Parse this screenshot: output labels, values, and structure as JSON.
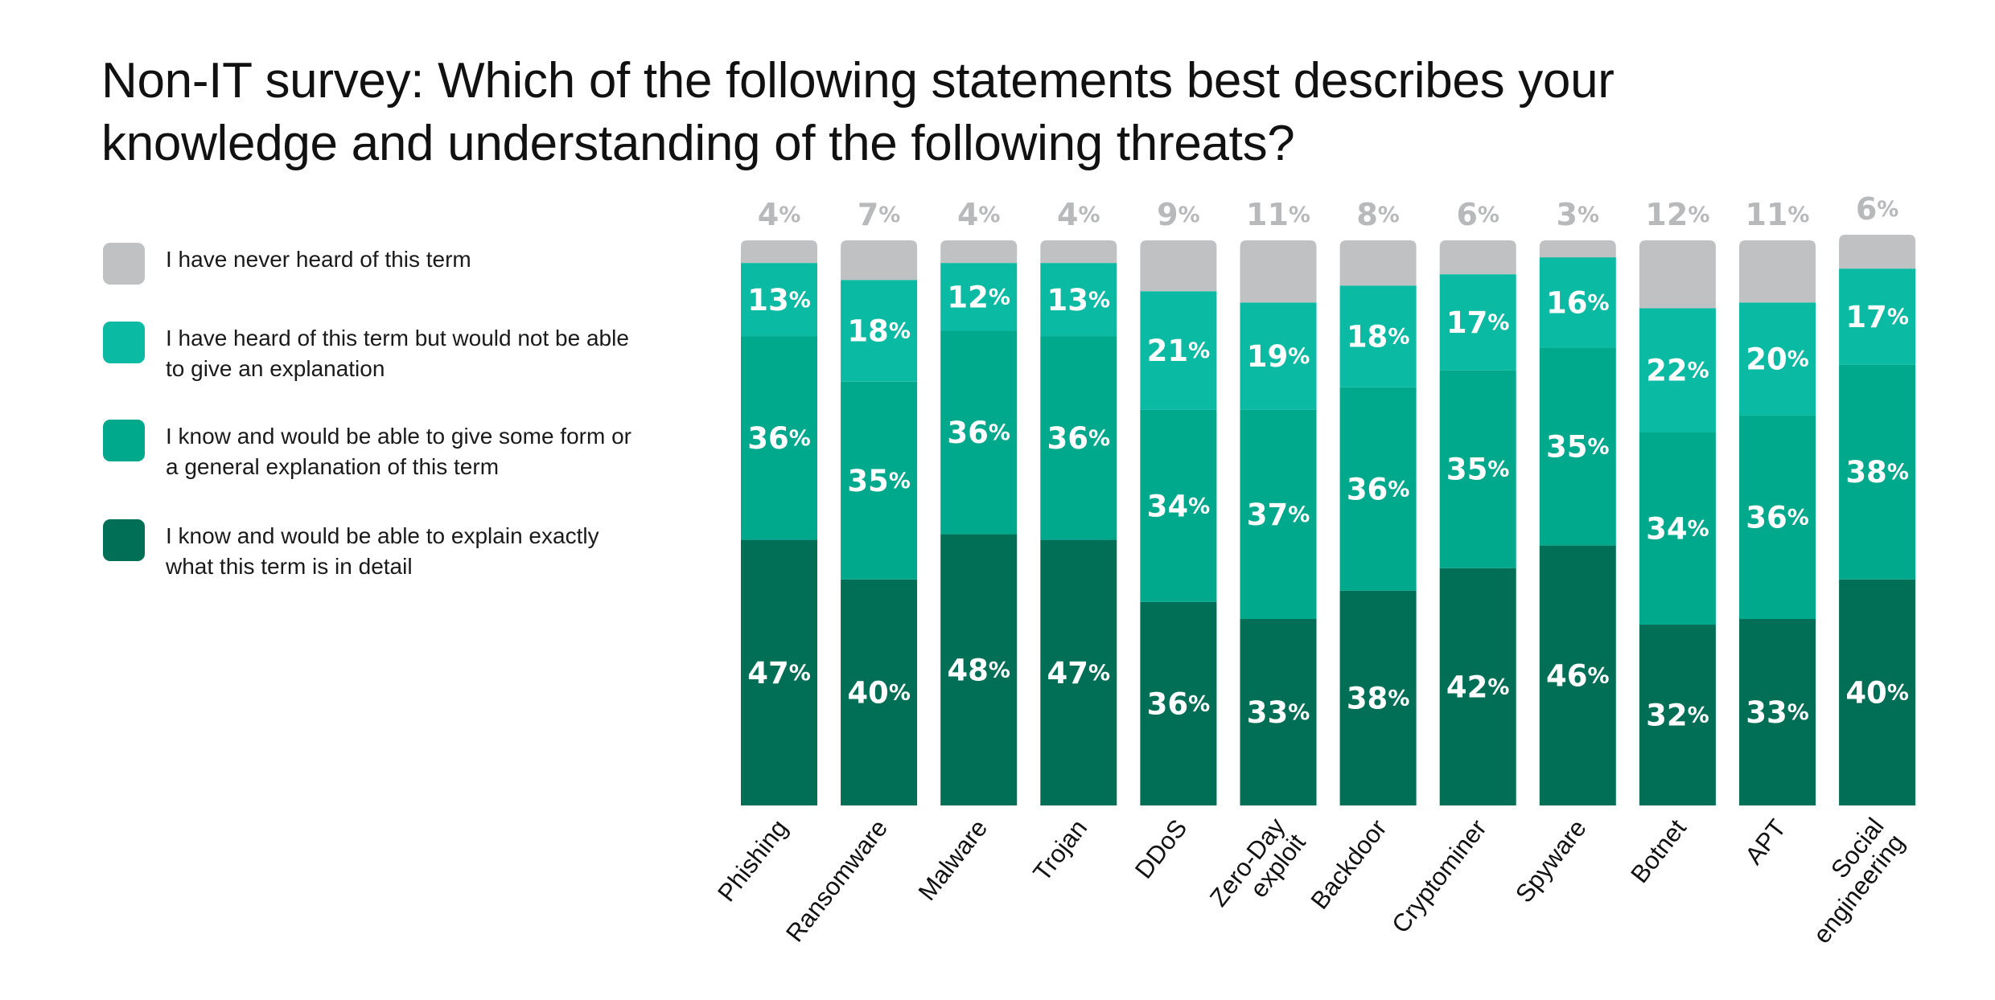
{
  "title": {
    "line1": "Non-IT survey: Which of the following statements best describes your",
    "line2": "knowledge and understanding of the following threats?"
  },
  "colors": {
    "never_heard": "#c0c1c3",
    "heard": "#0bbaa3",
    "general": "#00a88c",
    "detail": "#006f55",
    "segment_text": "#ffffff",
    "top_label": "#b7b9bb"
  },
  "legend": [
    {
      "key": "never_heard",
      "label": "I have never heard of this term"
    },
    {
      "key": "heard",
      "label": "I have heard of this term but would not be able to give an explanation"
    },
    {
      "key": "general",
      "label": "I know and would be able to give some form or a general explanation of this term"
    },
    {
      "key": "detail",
      "label": "I know and would be able to explain exactly what this term is in detail"
    }
  ],
  "chart_data": {
    "type": "bar",
    "stacked": true,
    "unit": "%",
    "categories": [
      "Phishing",
      "Ransomware",
      "Malware",
      "Trojan",
      "DDoS",
      "Zero-Day exploit",
      "Backdoor",
      "Cryptominer",
      "Spyware",
      "Botnet",
      "APT",
      "Social engineering"
    ],
    "series": [
      {
        "name": "I know and would be able to explain exactly what this term is in detail",
        "key": "detail",
        "values": [
          47,
          40,
          48,
          47,
          36,
          33,
          38,
          42,
          46,
          32,
          33,
          40
        ]
      },
      {
        "name": "I know and would be able to give some form or a general explanation of this term",
        "key": "general",
        "values": [
          36,
          35,
          36,
          36,
          34,
          37,
          36,
          35,
          35,
          34,
          36,
          38
        ]
      },
      {
        "name": "I have heard of this term but would not be able to give an explanation",
        "key": "heard",
        "values": [
          13,
          18,
          12,
          13,
          21,
          19,
          18,
          17,
          16,
          22,
          20,
          17
        ]
      },
      {
        "name": "I have never heard of this term",
        "key": "never_heard",
        "values": [
          4,
          7,
          4,
          4,
          9,
          11,
          8,
          6,
          3,
          12,
          11,
          6
        ]
      }
    ],
    "ylim": [
      0,
      100
    ],
    "grid": false,
    "legend_position": "left",
    "xlabel": "",
    "ylabel": ""
  }
}
